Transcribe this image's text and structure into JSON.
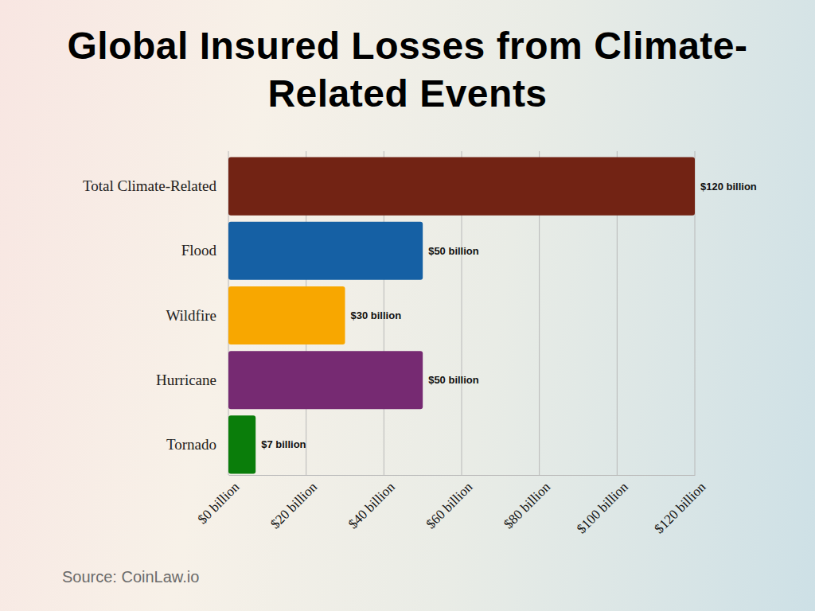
{
  "chart_data": {
    "type": "bar",
    "orientation": "horizontal",
    "title": "Global Insured Losses from Climate-Related Events",
    "categories": [
      "Total Climate-Related",
      "Flood",
      "Wildfire",
      "Hurricane",
      "Tornado"
    ],
    "values": [
      120,
      50,
      30,
      50,
      7
    ],
    "value_labels": [
      "$120 billion",
      "$50 billion",
      "$30 billion",
      "$50 billion",
      "$7 billion"
    ],
    "colors": [
      "#722314",
      "#1560a4",
      "#f8a700",
      "#762a72",
      "#0a7d0a"
    ],
    "xlim": [
      0,
      120
    ],
    "xticks": [
      {
        "value": 0,
        "label": "$0 billion"
      },
      {
        "value": 20,
        "label": "$20 billion"
      },
      {
        "value": 40,
        "label": "$40 billion"
      },
      {
        "value": 60,
        "label": "$60 billion"
      },
      {
        "value": 80,
        "label": "$80 billion"
      },
      {
        "value": 100,
        "label": "$100 billion"
      },
      {
        "value": 120,
        "label": "$120 billion"
      }
    ],
    "grid": true,
    "data_labels": true,
    "source": "Source: CoinLaw.io"
  }
}
